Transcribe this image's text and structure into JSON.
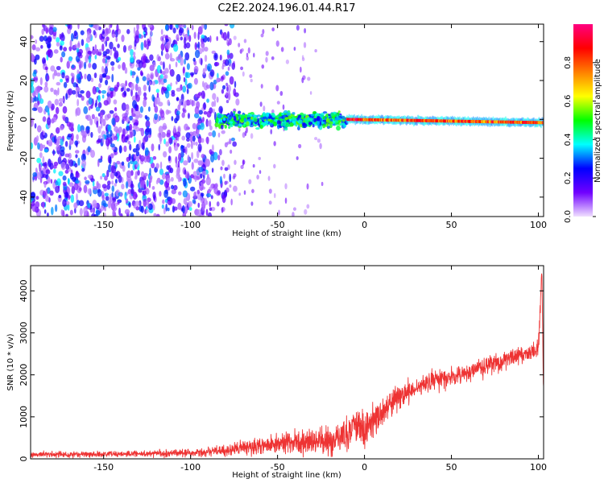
{
  "title": "C2E2.2024.196.01.44.R17",
  "chart_data": [
    {
      "type": "heatmap",
      "xlabel": "Height of straight line (km)",
      "ylabel": "Frequency (Hz)",
      "xlim": [
        -192,
        103
      ],
      "ylim": [
        -50,
        49
      ],
      "x_ticks": [
        -150,
        -100,
        -50,
        0,
        50,
        100
      ],
      "x_tick_labels": [
        "-150",
        "-100",
        "-50",
        "0",
        "50",
        "100"
      ],
      "y_ticks": [
        -40,
        -20,
        0,
        20,
        40
      ],
      "y_tick_labels": [
        "-40",
        "-20",
        "0",
        "20",
        "40"
      ],
      "colorbar": {
        "label": "Normalized spectral amplitude",
        "range": [
          0,
          1
        ],
        "ticks": [
          0.0,
          0.2,
          0.4,
          0.6,
          0.8
        ],
        "tick_labels": [
          "0.0",
          "0.2",
          "0.4",
          "0.6",
          "0.8"
        ],
        "colors": [
          "#f0e0ff",
          "#7000ff",
          "#0000ff",
          "#00ffff",
          "#00ff00",
          "#ffff00",
          "#ff8000",
          "#ff0000",
          "#ff0080"
        ]
      },
      "regions": [
        {
          "x_range": [
            -192,
            -85
          ],
          "freq_range": [
            -50,
            49
          ],
          "amplitude": 0.05,
          "pattern": "broadband noise"
        },
        {
          "x_range": [
            -85,
            -10
          ],
          "freq_range": [
            -8,
            6
          ],
          "amplitude": 0.35,
          "pattern": "noisy band"
        },
        {
          "x_range": [
            -10,
            103
          ],
          "freq_range": [
            -4,
            3
          ],
          "amplitude": 0.9,
          "pattern": "narrow carrier near 0 Hz"
        }
      ]
    },
    {
      "type": "line",
      "xlabel": "Height of straight line (km)",
      "ylabel": "SNR (10 * v/v)",
      "xlim": [
        -192,
        103
      ],
      "ylim": [
        0,
        4600
      ],
      "x_ticks": [
        -150,
        -100,
        -50,
        0,
        50,
        100
      ],
      "x_tick_labels": [
        "-150",
        "-100",
        "-50",
        "0",
        "50",
        "100"
      ],
      "y_ticks": [
        0,
        1000,
        2000,
        3000,
        4000
      ],
      "y_tick_labels": [
        "0",
        "1000",
        "2000",
        "3000",
        "4000"
      ],
      "color": "#ee3333",
      "trend": {
        "x": [
          -192,
          -150,
          -100,
          -80,
          -60,
          -40,
          -20,
          -10,
          -5,
          0,
          10,
          20,
          30,
          40,
          50,
          60,
          70,
          80,
          90,
          100,
          102,
          103
        ],
        "y": [
          100,
          110,
          140,
          200,
          300,
          400,
          420,
          600,
          850,
          700,
          1100,
          1500,
          1700,
          1850,
          1950,
          2050,
          2200,
          2350,
          2450,
          2600,
          4500,
          1500
        ]
      },
      "noise_amplitude": [
        {
          "x": -192,
          "amp": 70
        },
        {
          "x": -100,
          "amp": 90
        },
        {
          "x": -60,
          "amp": 200
        },
        {
          "x": -20,
          "amp": 400
        },
        {
          "x": 0,
          "amp": 450
        },
        {
          "x": 30,
          "amp": 250
        },
        {
          "x": 100,
          "amp": 230
        }
      ]
    }
  ]
}
